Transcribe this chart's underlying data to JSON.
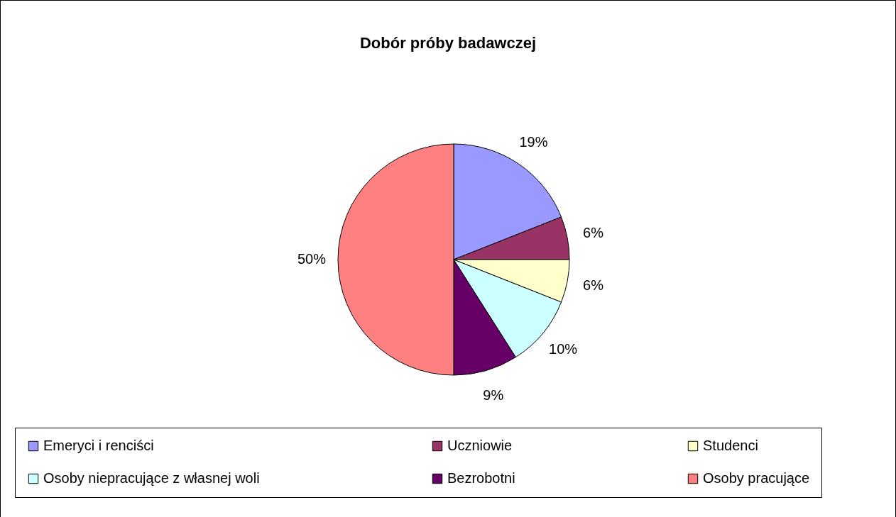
{
  "chart_data": {
    "type": "pie",
    "title": "Dobór próby badawczej",
    "categories": [
      "Emeryci i renciści",
      "Uczniowie",
      "Studenci",
      "Osoby niepracujące z własnej woli",
      "Bezrobotni",
      "Osoby pracujące"
    ],
    "values": [
      19,
      6,
      6,
      10,
      9,
      50
    ],
    "colors": [
      "#9999ff",
      "#993366",
      "#ffffcc",
      "#ccffff",
      "#660066",
      "#ff8080"
    ],
    "value_labels": [
      "19%",
      "6%",
      "6%",
      "10%",
      "9%",
      "50%"
    ],
    "legend": "bottom"
  }
}
